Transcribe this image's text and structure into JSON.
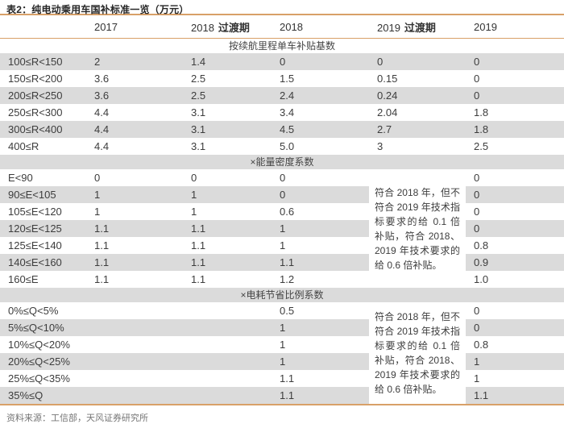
{
  "title": "表2：纯电动乘用车国补标准一览（万元）",
  "footer": {
    "source": "资料来源：工信部，天风证券研究所"
  },
  "colors": {
    "accent_border": "#d8a068",
    "row_shade": "#dbdbdb",
    "text": "#3d3d3d"
  },
  "table": {
    "columns": [
      {
        "key": "2017",
        "year": "2017",
        "suffix": ""
      },
      {
        "key": "2018-transition",
        "year": "2018",
        "suffix": "过渡期"
      },
      {
        "key": "2018",
        "year": "2018",
        "suffix": ""
      },
      {
        "key": "2019-transition",
        "year": "2019",
        "suffix": "过渡期"
      },
      {
        "key": "2019",
        "year": "2019",
        "suffix": ""
      }
    ],
    "sections": [
      {
        "header": "按续航里程单车补贴基数",
        "note": "",
        "rows": [
          {
            "label": "100≤R<150",
            "values": [
              "2",
              "1.4",
              "0",
              "0",
              "0"
            ]
          },
          {
            "label": "150≤R<200",
            "values": [
              "3.6",
              "2.5",
              "1.5",
              "0.15",
              "0"
            ]
          },
          {
            "label": "200≤R<250",
            "values": [
              "3.6",
              "2.5",
              "2.4",
              "0.24",
              "0"
            ]
          },
          {
            "label": "250≤R<300",
            "values": [
              "4.4",
              "3.1",
              "3.4",
              "2.04",
              "1.8"
            ]
          },
          {
            "label": "300≤R<400",
            "values": [
              "4.4",
              "3.1",
              "4.5",
              "2.7",
              "1.8"
            ]
          },
          {
            "label": "400≤R",
            "values": [
              "4.4",
              "3.1",
              "5.0",
              "3",
              "2.5"
            ]
          }
        ]
      },
      {
        "header": "×能量密度系数",
        "note": "符合 2018 年，但不符合 2019 年技术指标要求的给 0.1 倍补贴，符合 2018、2019 年技术要求的给 0.6 倍补贴。",
        "rows": [
          {
            "label": "E<90",
            "values": [
              "0",
              "0",
              "0",
              "",
              "0"
            ]
          },
          {
            "label": "90≤E<105",
            "values": [
              "1",
              "1",
              "0",
              "",
              "0"
            ]
          },
          {
            "label": "105≤E<120",
            "values": [
              "1",
              "1",
              "0.6",
              "",
              "0"
            ]
          },
          {
            "label": "120≤E<125",
            "values": [
              "1.1",
              "1.1",
              "1",
              "",
              "0"
            ]
          },
          {
            "label": "125≤E<140",
            "values": [
              "1.1",
              "1.1",
              "1",
              "",
              "0.8"
            ]
          },
          {
            "label": "140≤E<160",
            "values": [
              "1.1",
              "1.1",
              "1.1",
              "",
              "0.9"
            ]
          },
          {
            "label": "160≤E",
            "values": [
              "1.1",
              "1.1",
              "1.2",
              "",
              "1.0"
            ]
          }
        ]
      },
      {
        "header": "×电耗节省比例系数",
        "note": "符合 2018 年，但不符合 2019 年技术指标要求的给 0.1 倍补贴，符合 2018、2019 年技术要求的给 0.6 倍补贴。",
        "rows": [
          {
            "label": "0%≤Q<5%",
            "values": [
              "",
              "",
              "0.5",
              "",
              "0"
            ]
          },
          {
            "label": "5%≤Q<10%",
            "values": [
              "",
              "",
              "1",
              "",
              "0"
            ]
          },
          {
            "label": "10%≤Q<20%",
            "values": [
              "",
              "",
              "1",
              "",
              "0.8"
            ]
          },
          {
            "label": "20%≤Q<25%",
            "values": [
              "",
              "",
              "1",
              "",
              "1"
            ]
          },
          {
            "label": "25%≤Q<35%",
            "values": [
              "",
              "",
              "1.1",
              "",
              "1"
            ]
          },
          {
            "label": "35%≤Q",
            "values": [
              "",
              "",
              "1.1",
              "",
              "1.1"
            ]
          }
        ]
      }
    ]
  }
}
